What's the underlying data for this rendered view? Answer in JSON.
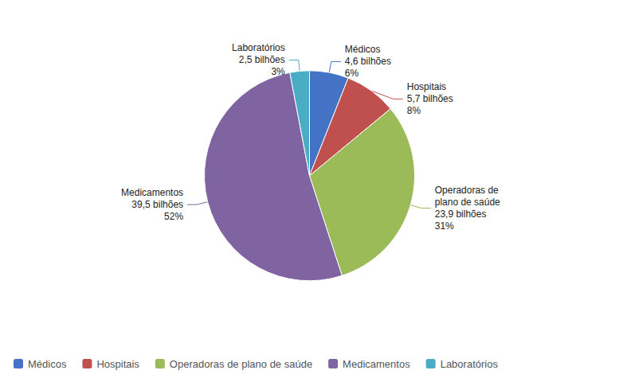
{
  "chart_data": {
    "type": "pie",
    "categories": [
      "Médicos",
      "Hospitais",
      "Operadoras de plano de saúde",
      "Medicamentos",
      "Laboratórios"
    ],
    "values": [
      6,
      8,
      31,
      52,
      3
    ],
    "colors": [
      "#4472C4",
      "#C0504D",
      "#9BBB59",
      "#8064A2",
      "#4BACC6"
    ],
    "annotations": [
      "Médicos\n4,6 bilhões\n6%",
      "Hospitais\n5,7 bilhões\n8%",
      "Operadoras de\nplano de saúde\n23,9 bilhões\n31%",
      "Medicamentos\n39,5 bilhões\n52%",
      "Laboratórios\n2,5 bilhões\n3%"
    ],
    "legend": "lower left"
  }
}
